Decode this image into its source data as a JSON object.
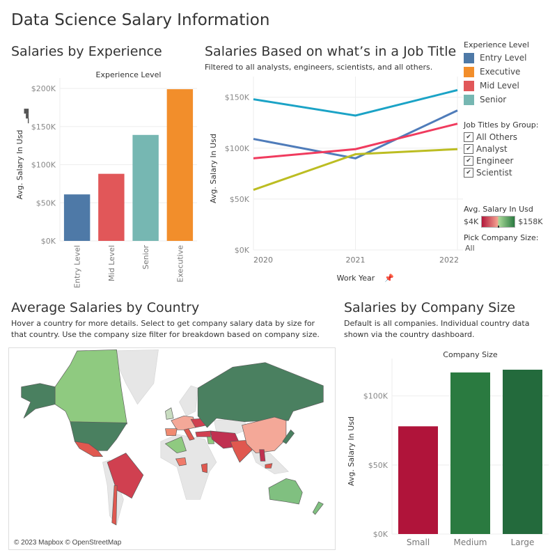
{
  "dashboard_title": "Data Science Salary Information",
  "experience_chart": {
    "title": "Salaries by Experience",
    "chart_data": {
      "type": "bar",
      "title": "Experience Level",
      "ylabel": "Avg. Salary In Usd",
      "categories": [
        "Entry Level",
        "Mid Level",
        "Senior",
        "Executive"
      ],
      "values": [
        61000,
        88000,
        139000,
        199000
      ],
      "colors": [
        "#4e79a7",
        "#e15759",
        "#76b7b2",
        "#f28e2b"
      ],
      "ylim": [
        0,
        200000
      ],
      "yticks": [
        "$0K",
        "$50K",
        "$100K",
        "$150K",
        "$200K"
      ],
      "grid": true
    }
  },
  "job_title_chart": {
    "title": "Salaries Based on what’s in a Job Title",
    "subtitle": "Filtered to all analysts, engineers, scientists, and all others.",
    "chart_data": {
      "type": "line",
      "xlabel": "Work Year",
      "ylabel": "Avg. Salary In Usd",
      "x": [
        "2020",
        "2021",
        "2022"
      ],
      "ylim": [
        0,
        160000
      ],
      "yticks": [
        "$0K",
        "$50K",
        "$100K",
        "$150K"
      ],
      "grid": true,
      "series": [
        {
          "values": [
            148000,
            132000,
            157000
          ],
          "color": "#1ba3c6"
        },
        {
          "values": [
            109000,
            90000,
            137000
          ],
          "color": "#4f7cba"
        },
        {
          "values": [
            90000,
            99000,
            124000
          ],
          "color": "#f03b5e"
        },
        {
          "values": [
            59000,
            94000,
            99000
          ],
          "color": "#bcbd22"
        }
      ]
    }
  },
  "legend": {
    "title": "Experience Level",
    "items": [
      {
        "label": "Entry Level",
        "color": "#4e79a7"
      },
      {
        "label": "Executive",
        "color": "#f28e2b"
      },
      {
        "label": "Mid Level",
        "color": "#e15759"
      },
      {
        "label": "Senior",
        "color": "#76b7b2"
      }
    ]
  },
  "job_filter": {
    "title": "Job Titles by Group:",
    "options": [
      {
        "label": "All Others",
        "checked": true
      },
      {
        "label": "Analyst",
        "checked": true
      },
      {
        "label": "Engineer",
        "checked": true
      },
      {
        "label": "Scientist",
        "checked": true
      }
    ]
  },
  "color_scale": {
    "title": "Avg. Salary In Usd",
    "min": "$4K",
    "max": "$158K",
    "low_color": "#b2183b",
    "high_color": "#2a7a40"
  },
  "company_filter": {
    "title": "Pick Company Size:",
    "value": "All"
  },
  "map_section": {
    "title": "Average Salaries by Country",
    "description": "Hover a country for more details. Select to get company salary data by size for that country. Use the company size filter for breakdown based on company size.",
    "attribution": "© 2023 Mapbox © OpenStreetMap"
  },
  "company_chart": {
    "title": "Salaries by Company Size",
    "description": "Default is all companies. Individual country data shown via the country dashboard.",
    "chart_data": {
      "type": "bar",
      "title": "Company Size",
      "ylabel": "Avg. Salary In Usd",
      "categories": [
        "Small",
        "Medium",
        "Large"
      ],
      "values": [
        78000,
        117000,
        119000
      ],
      "colors": [
        "#b0143a",
        "#2a7a40",
        "#236a3c"
      ],
      "ylim": [
        0,
        120000
      ],
      "yticks": [
        "$0K",
        "$50K",
        "$100K"
      ],
      "grid": true
    }
  }
}
